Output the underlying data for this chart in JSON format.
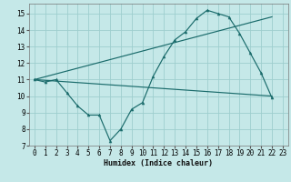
{
  "xlabel": "Humidex (Indice chaleur)",
  "xlim": [
    -0.5,
    23.5
  ],
  "ylim": [
    7,
    15.6
  ],
  "yticks": [
    7,
    8,
    9,
    10,
    11,
    12,
    13,
    14,
    15
  ],
  "xticks": [
    0,
    1,
    2,
    3,
    4,
    5,
    6,
    7,
    8,
    9,
    10,
    11,
    12,
    13,
    14,
    15,
    16,
    17,
    18,
    19,
    20,
    21,
    22,
    23
  ],
  "bg_color": "#c5e8e8",
  "grid_color": "#9ecece",
  "line_color": "#1a6b6b",
  "line1_x": [
    0,
    1,
    2,
    3,
    4,
    5,
    6,
    7,
    8,
    9,
    10,
    11,
    12,
    13,
    14,
    15,
    16,
    17,
    18,
    19,
    20,
    21,
    22
  ],
  "line1_y": [
    11.0,
    10.85,
    11.0,
    10.2,
    9.4,
    8.85,
    8.85,
    7.3,
    8.0,
    9.2,
    9.6,
    11.2,
    12.4,
    13.4,
    13.9,
    14.7,
    15.2,
    15.0,
    14.8,
    13.8,
    12.6,
    11.4,
    9.9
  ],
  "line2_x": [
    0,
    22
  ],
  "line2_y": [
    11.0,
    10.0
  ],
  "line3_x": [
    0,
    22
  ],
  "line3_y": [
    11.0,
    14.8
  ],
  "tick_fontsize": 5.5,
  "xlabel_fontsize": 6.0
}
